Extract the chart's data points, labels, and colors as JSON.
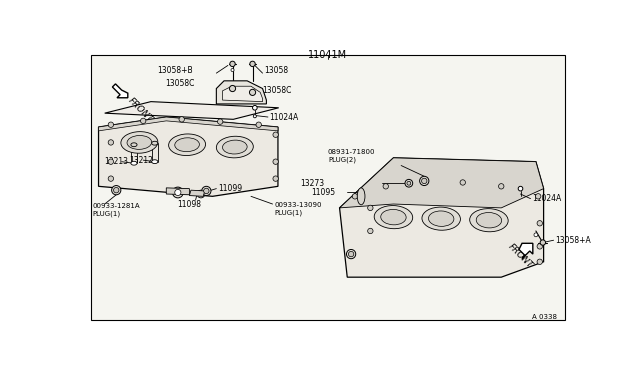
{
  "bg_color": "#f5f5f0",
  "border_color": "#000000",
  "title": "11041M",
  "footer": "A 0338",
  "labels": {
    "13058B": "13058+B",
    "13058": "13058",
    "13058C_l": "13058C",
    "13058C_r": "13058C",
    "11024A_l": "11024A",
    "13213": "13213",
    "13212": "13212",
    "plug1281": "00933-1281A\nPLUG(1)",
    "11099": "11099",
    "11098": "11098",
    "plug13090": "00933-13090\nPLUG(1)",
    "plug71800": "08931-71800\nPLUG(2)",
    "13273": "13273",
    "11095": "11095",
    "13058A": "13058+A",
    "11024A_r": "11024A",
    "FRONT_l": "FRONT",
    "FRONT_r": "FRONT"
  }
}
